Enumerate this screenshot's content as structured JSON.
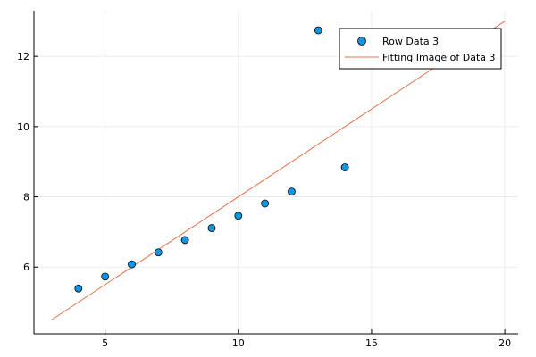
{
  "colors": {
    "scatter": "#0e96e6",
    "fit": "#e26f46",
    "grid": "#ebebeb",
    "axis": "#000000",
    "background": "#ffffff"
  },
  "legend": {
    "entries": [
      "Row Data 3",
      "Fitting Image of Data 3"
    ],
    "placement": "top-right"
  },
  "chart_data": {
    "type": "scatter",
    "title": "",
    "xlabel": "",
    "ylabel": "",
    "xlim": [
      2.33,
      20.5
    ],
    "ylim": [
      4.1,
      13.3
    ],
    "xticks": [
      5,
      10,
      15,
      20
    ],
    "yticks": [
      6,
      8,
      10,
      12
    ],
    "grid": true,
    "series": [
      {
        "name": "Row Data 3",
        "type": "scatter",
        "x": [
          4,
          5,
          6,
          7,
          8,
          9,
          10,
          11,
          12,
          13,
          14
        ],
        "y": [
          5.39,
          5.73,
          6.08,
          6.42,
          6.77,
          7.11,
          7.46,
          7.81,
          8.15,
          12.74,
          8.84
        ]
      },
      {
        "name": "Fitting Image of Data 3",
        "type": "line",
        "x": [
          3,
          20
        ],
        "y": [
          4.5,
          13.0
        ]
      }
    ]
  }
}
